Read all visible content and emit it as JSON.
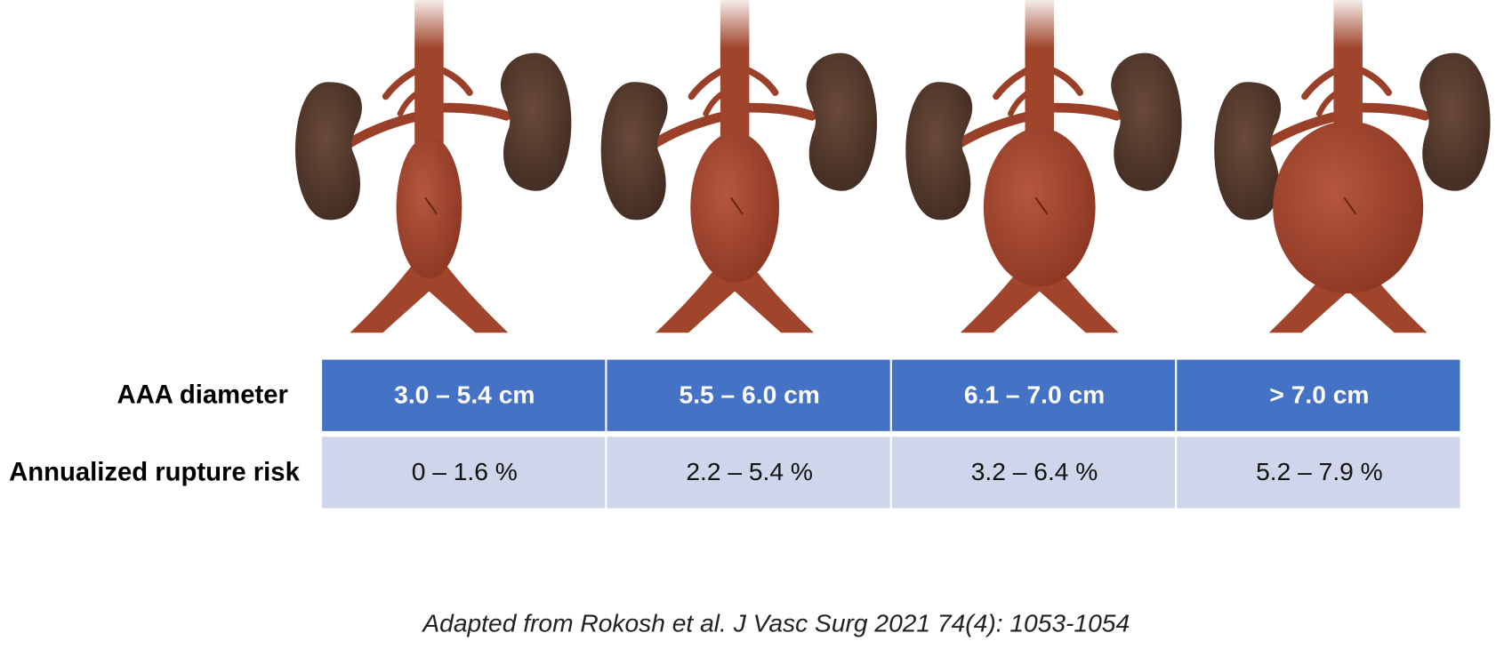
{
  "table": {
    "row_headers": [
      "AAA diameter",
      "Annualized rupture risk"
    ],
    "rows": [
      [
        "3.0 – 5.4 cm",
        "5.5 – 6.0 cm",
        "6.1 – 7.0 cm",
        "> 7.0 cm"
      ],
      [
        "0 – 1.6 %",
        "2.2 – 5.4 %",
        "3.2 – 6.4 %",
        "5.2 – 7.9 %"
      ]
    ]
  },
  "caption": "Adapted from Rokosh et al. J Vasc Surg 2021 74(4): 1053-1054"
}
